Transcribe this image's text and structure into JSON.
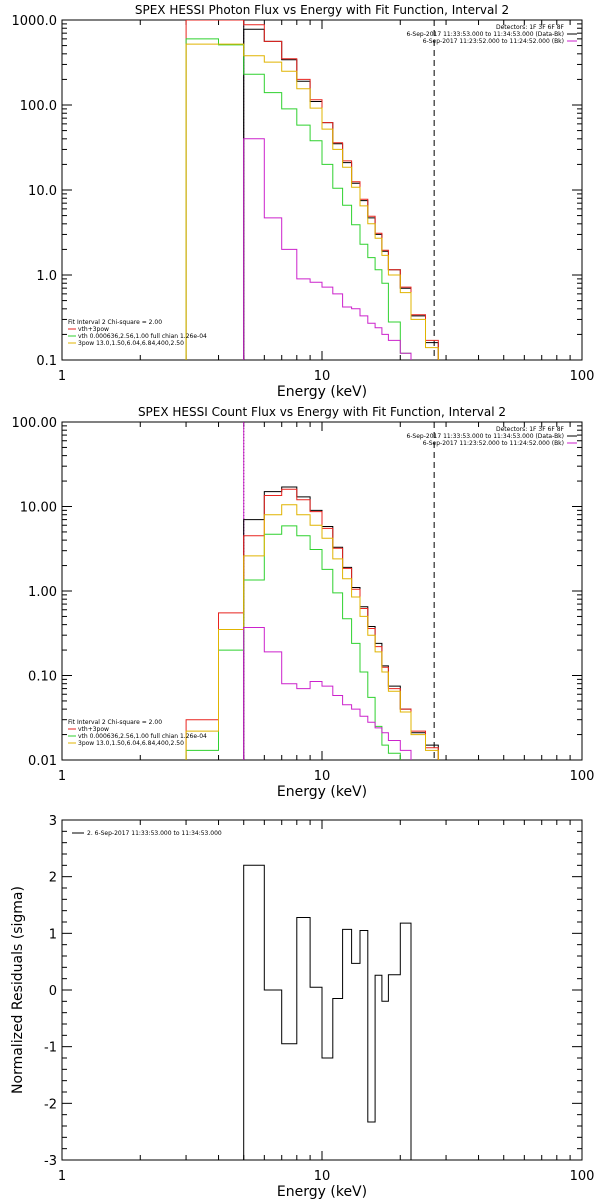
{
  "colors": {
    "black": "#000000",
    "red": "#e8231f",
    "green": "#2fd12f",
    "yellow": "#e0b400",
    "magenta": "#cc22cc"
  },
  "chart_data": [
    {
      "type": "line",
      "title": "SPEX HESSI Photon Flux vs Energy with Fit Function, Interval 2",
      "xlabel": "Energy (keV)",
      "ylabel": "",
      "xscale": "log",
      "yscale": "log",
      "xlim": [
        1,
        100
      ],
      "ylim": [
        0.1,
        1000
      ],
      "xticklabels": [
        "1",
        "10",
        "100"
      ],
      "yticks": [
        0.1,
        1,
        10,
        100,
        1000
      ],
      "yticklabels": [
        "0.1",
        "1.0",
        "10.0",
        "100.0",
        "1000.0"
      ],
      "vlines": [
        {
          "x": 5.0,
          "style": "dotted",
          "color": "magenta"
        },
        {
          "x": 5.0,
          "style": "solid",
          "color": "black"
        },
        {
          "x": 27.0,
          "style": "dashed",
          "color": "black"
        }
      ],
      "legend_top_right": [
        {
          "text": "Detectors: 1F 3F 6F 8F",
          "color": ""
        },
        {
          "text": "6-Sep-2017 11:33:53.000 to 11:34:53.000 (Data-Bk)",
          "color": "black"
        },
        {
          "text": "6-Sep-2017 11:23:52.000 to 11:24:52.000 (Bk)",
          "color": "magenta"
        }
      ],
      "legend_bottom_left": [
        {
          "text": "Fit Interval 2   Chi-square = 2.00",
          "color": ""
        },
        {
          "text": "vth+3pow",
          "color": "red"
        },
        {
          "text": "vth 0.000636,2.56,1.00  full chian 1.26e-04",
          "color": "green"
        },
        {
          "text": "3pow 13.0,1.50,6.04,6.84,400,2.50",
          "color": "yellow"
        }
      ],
      "edges": [
        3.0,
        4.0,
        5.0,
        6.0,
        7.0,
        8.0,
        9.0,
        10.0,
        11.0,
        12.0,
        13.0,
        14.0,
        15.0,
        16.0,
        17.0,
        18.0,
        20.0,
        22.0,
        25.0,
        28.0
      ],
      "series": [
        {
          "name": "Data-Bk",
          "color": "black",
          "values": [
            null,
            null,
            780,
            560,
            340,
            190,
            110,
            62,
            35,
            21,
            12,
            7.5,
            4.7,
            3.0,
            1.9,
            1.15,
            0.7,
            0.33,
            0.16
          ]
        },
        {
          "name": "vth+3pow",
          "color": "red",
          "values": [
            1150,
            1000,
            880,
            560,
            350,
            200,
            115,
            62,
            36,
            22,
            12.5,
            7.8,
            4.9,
            3.1,
            1.95,
            1.15,
            0.72,
            0.34,
            0.17
          ]
        },
        {
          "name": "vth",
          "color": "green",
          "values": [
            600,
            510,
            230,
            140,
            90,
            58,
            38,
            20,
            10.5,
            6.6,
            3.9,
            2.3,
            1.6,
            1.15,
            0.8,
            0.28,
            0.12,
            null,
            null
          ]
        },
        {
          "name": "3pow",
          "color": "yellow",
          "values": [
            520,
            520,
            380,
            320,
            250,
            155,
            92,
            52,
            30,
            18.5,
            10.8,
            6.5,
            4.0,
            2.7,
            1.7,
            1.0,
            0.62,
            0.3,
            0.14
          ]
        },
        {
          "name": "Bk",
          "color": "magenta",
          "values": [
            null,
            null,
            40,
            4.7,
            2.0,
            0.9,
            0.82,
            0.72,
            0.6,
            0.42,
            0.4,
            0.33,
            0.27,
            0.24,
            0.2,
            0.17,
            0.12,
            null,
            null
          ]
        }
      ]
    },
    {
      "type": "line",
      "title": "SPEX HESSI Count Flux vs Energy with Fit Function, Interval 2",
      "xlabel": "Energy (keV)",
      "ylabel": "",
      "xscale": "log",
      "yscale": "log",
      "xlim": [
        1,
        100
      ],
      "ylim": [
        0.01,
        100
      ],
      "xticklabels": [
        "1",
        "10",
        "100"
      ],
      "yticks": [
        0.01,
        0.1,
        1,
        10,
        100
      ],
      "yticklabels": [
        "0.01",
        "0.10",
        "1.00",
        "10.00",
        "100.00"
      ],
      "vlines": [
        {
          "x": 5.0,
          "style": "dotted",
          "color": "black"
        },
        {
          "x": 5.0,
          "style": "solid",
          "color": "magenta"
        },
        {
          "x": 27.0,
          "style": "dashed",
          "color": "black"
        }
      ],
      "legend_top_right": [
        {
          "text": "Detectors: 1F 3F 6F 8F",
          "color": ""
        },
        {
          "text": "6-Sep-2017 11:33:53.000 to 11:34:53.000 (Data-Bk)",
          "color": "black"
        },
        {
          "text": "6-Sep-2017 11:23:52.000 to 11:24:52.000 (Bk)",
          "color": "magenta"
        }
      ],
      "legend_bottom_left": [
        {
          "text": "Fit Interval 2   Chi-square = 2.00",
          "color": ""
        },
        {
          "text": "vth+3pow",
          "color": "red"
        },
        {
          "text": "vth 0.000636,2.56,1.00  full chian 1.26e-04",
          "color": "green"
        },
        {
          "text": "3pow 13.0,1.50,6.04,6.84,400,2.50",
          "color": "yellow"
        }
      ],
      "edges": [
        3.0,
        4.0,
        5.0,
        6.0,
        7.0,
        8.0,
        9.0,
        10.0,
        11.0,
        12.0,
        13.0,
        14.0,
        15.0,
        16.0,
        17.0,
        18.0,
        20.0,
        22.0,
        25.0,
        28.0
      ],
      "series": [
        {
          "name": "Data-Bk",
          "color": "black",
          "values": [
            null,
            null,
            7.0,
            15.0,
            17.0,
            13.0,
            9.0,
            5.8,
            3.3,
            1.9,
            1.1,
            0.65,
            0.38,
            0.24,
            0.13,
            0.075,
            0.04,
            0.021,
            0.015
          ]
        },
        {
          "name": "vth+3pow",
          "color": "red",
          "values": [
            0.03,
            0.55,
            4.5,
            13.5,
            16.0,
            12.0,
            8.7,
            5.5,
            3.2,
            1.85,
            1.05,
            0.62,
            0.36,
            0.22,
            0.125,
            0.07,
            0.04,
            0.022,
            0.014
          ]
        },
        {
          "name": "vth",
          "color": "green",
          "values": [
            0.013,
            0.2,
            1.35,
            4.7,
            5.9,
            4.5,
            3.1,
            1.8,
            0.95,
            0.47,
            0.24,
            0.11,
            0.055,
            0.025,
            0.015,
            0.012,
            null,
            null,
            null
          ]
        },
        {
          "name": "3pow",
          "color": "yellow",
          "values": [
            0.022,
            0.35,
            2.6,
            8.0,
            10.5,
            8.0,
            6.0,
            4.2,
            2.4,
            1.4,
            0.85,
            0.5,
            0.3,
            0.19,
            0.11,
            0.065,
            0.037,
            0.02,
            0.013
          ]
        },
        {
          "name": "Bk",
          "color": "magenta",
          "values": [
            null,
            null,
            0.37,
            0.19,
            0.08,
            0.07,
            0.085,
            0.075,
            0.058,
            0.045,
            0.04,
            0.033,
            0.028,
            0.024,
            0.021,
            0.017,
            0.013,
            null,
            null
          ]
        }
      ]
    },
    {
      "type": "line",
      "title": "",
      "xlabel": "Energy (keV)",
      "ylabel": "Normalized Residuals (sigma)",
      "xscale": "log",
      "yscale": "linear",
      "xlim": [
        1,
        100
      ],
      "ylim": [
        -3,
        3
      ],
      "xticklabels": [
        "1",
        "10",
        "100"
      ],
      "yticks": [
        -3,
        -2,
        -1,
        0,
        1,
        2,
        3
      ],
      "yticklabels": [
        "-3",
        "-2",
        "-1",
        "0",
        "1",
        "2",
        "3"
      ],
      "legend": [
        {
          "text": "2. 6-Sep-2017 11:33:53.000 to 11:34:53.000",
          "color": "black"
        }
      ],
      "edges": [
        5.0,
        6.0,
        7.0,
        8.0,
        9.0,
        10.0,
        11.0,
        12.0,
        13.0,
        14.0,
        15.0,
        16.0,
        17.0,
        18.0,
        20.0,
        22.0,
        25.0,
        28.0
      ],
      "series": [
        {
          "name": "",
          "color": "black",
          "values": [
            2.2,
            0.0,
            -0.95,
            1.28,
            0.05,
            -1.2,
            -0.15,
            1.07,
            0.47,
            1.05,
            -2.33,
            0.26,
            -0.2,
            0.27,
            1.18
          ]
        }
      ]
    }
  ]
}
